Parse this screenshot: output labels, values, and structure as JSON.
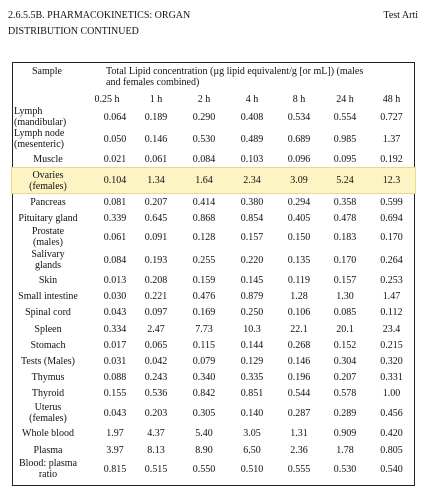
{
  "header": {
    "title_line1": "2.6.5.5B. PHARMACOKINETICS: ORGAN",
    "title_line2": "DISTRIBUTION CONTINUED",
    "right": "Test Arti"
  },
  "table": {
    "sample_header": "Sample",
    "group_header_line1": "Total Lipid concentration (µg lipid equivalent/g [or mL]) (males",
    "group_header_line2": "and females combined)",
    "time_headers": [
      "0.25 h",
      "1 h",
      "2 h",
      "4 h",
      "8 h",
      "24 h",
      "48 h"
    ],
    "rows": [
      {
        "name": [
          "Lymph",
          "(mandibular)"
        ],
        "values": [
          "0.064",
          "0.189",
          "0.290",
          "0.408",
          "0.534",
          "0.554",
          "0.727"
        ]
      },
      {
        "name": [
          "Lymph node",
          "(mesenteric)"
        ],
        "values": [
          "0.050",
          "0.146",
          "0.530",
          "0.489",
          "0.689",
          "0.985",
          "1.37"
        ]
      },
      {
        "name": [
          "Muscle"
        ],
        "values": [
          "0.021",
          "0.061",
          "0.084",
          "0.103",
          "0.096",
          "0.095",
          "0.192"
        ]
      },
      {
        "name": [
          "Ovaries",
          "(females)"
        ],
        "values": [
          "0.104",
          "1.34",
          "1.64",
          "2.34",
          "3.09",
          "5.24",
          "12.3"
        ]
      },
      {
        "name": [
          "Pancreas"
        ],
        "values": [
          "0.081",
          "0.207",
          "0.414",
          "0.380",
          "0.294",
          "0.358",
          "0.599"
        ]
      },
      {
        "name": [
          "Pituitary gland"
        ],
        "values": [
          "0.339",
          "0.645",
          "0.868",
          "0.854",
          "0.405",
          "0.478",
          "0.694"
        ]
      },
      {
        "name": [
          "Prostate",
          "(males)"
        ],
        "values": [
          "0.061",
          "0.091",
          "0.128",
          "0.157",
          "0.150",
          "0.183",
          "0.170"
        ]
      },
      {
        "name": [
          "Salivary",
          "glands"
        ],
        "values": [
          "0.084",
          "0.193",
          "0.255",
          "0.220",
          "0.135",
          "0.170",
          "0.264"
        ]
      },
      {
        "name": [
          "Skin"
        ],
        "values": [
          "0.013",
          "0.208",
          "0.159",
          "0.145",
          "0.119",
          "0.157",
          "0.253"
        ]
      },
      {
        "name": [
          "Small intestine"
        ],
        "values": [
          "0.030",
          "0.221",
          "0.476",
          "0.879",
          "1.28",
          "1.30",
          "1.47"
        ]
      },
      {
        "name": [
          "Spinal cord"
        ],
        "values": [
          "0.043",
          "0.097",
          "0.169",
          "0.250",
          "0.106",
          "0.085",
          "0.112"
        ]
      },
      {
        "name": [
          "Spleen"
        ],
        "values": [
          "0.334",
          "2.47",
          "7.73",
          "10.3",
          "22.1",
          "20.1",
          "23.4"
        ]
      },
      {
        "name": [
          "Stomach"
        ],
        "values": [
          "0.017",
          "0.065",
          "0.115",
          "0.144",
          "0.268",
          "0.152",
          "0.215"
        ]
      },
      {
        "name": [
          "Tests (Males)"
        ],
        "values": [
          "0.031",
          "0.042",
          "0.079",
          "0.129",
          "0.146",
          "0.304",
          "0.320"
        ]
      },
      {
        "name": [
          "Thymus"
        ],
        "values": [
          "0.088",
          "0.243",
          "0.340",
          "0.335",
          "0.196",
          "0.207",
          "0.331"
        ]
      },
      {
        "name": [
          "Thyroid"
        ],
        "values": [
          "0.155",
          "0.536",
          "0.842",
          "0.851",
          "0.544",
          "0.578",
          "1.00"
        ]
      },
      {
        "name": [
          "Uterus",
          "(females)"
        ],
        "values": [
          "0.043",
          "0.203",
          "0.305",
          "0.140",
          "0.287",
          "0.289",
          "0.456"
        ]
      },
      {
        "name": [
          "Whole blood"
        ],
        "values": [
          "1.97",
          "4.37",
          "5.40",
          "3.05",
          "1.31",
          "0.909",
          "0.420"
        ]
      },
      {
        "name": [
          "Plasma"
        ],
        "values": [
          "3.97",
          "8.13",
          "8.90",
          "6.50",
          "2.36",
          "1.78",
          "0.805"
        ]
      },
      {
        "name": [
          "Blood: plasma ratio"
        ],
        "values": [
          "0.815",
          "0.515",
          "0.550",
          "0.510",
          "0.555",
          "0.530",
          "0.540"
        ]
      }
    ],
    "highlight_color": "#fdf4c4"
  }
}
